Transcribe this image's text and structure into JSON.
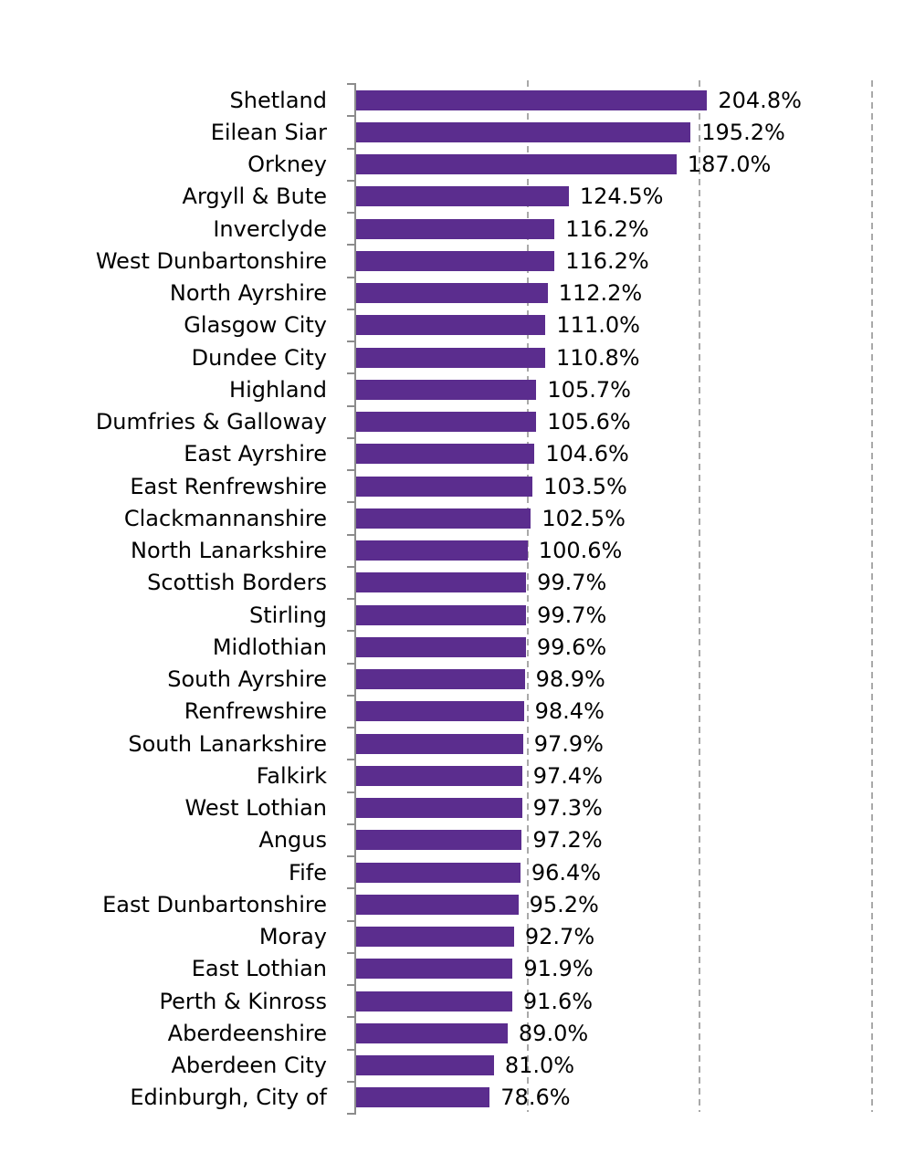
{
  "chart_data": {
    "type": "bar",
    "orientation": "horizontal",
    "title": "",
    "xlabel": "",
    "ylabel": "",
    "xlim": [
      0,
      300
    ],
    "xunit": "%",
    "gridlines_pct": [
      100,
      200,
      300
    ],
    "grid_style": "dashed-vertical",
    "legend": "none",
    "categories": [
      "Shetland",
      "Eilean Siar",
      "Orkney",
      "Argyll & Bute",
      "Inverclyde",
      "West Dunbartonshire",
      "North Ayrshire",
      "Glasgow City",
      "Dundee City",
      "Highland",
      "Dumfries & Galloway",
      "East Ayrshire",
      "East Renfrewshire",
      "Clackmannanshire",
      "North Lanarkshire",
      "Scottish Borders",
      "Stirling",
      "Midlothian",
      "South Ayrshire",
      "Renfrewshire",
      "South Lanarkshire",
      "Falkirk",
      "West Lothian",
      "Angus",
      "Fife",
      "East Dunbartonshire",
      "Moray",
      "East Lothian",
      "Perth & Kinross",
      "Aberdeenshire",
      "Aberdeen City",
      "Edinburgh, City of"
    ],
    "values": [
      204.8,
      195.2,
      187.0,
      124.5,
      116.2,
      116.2,
      112.2,
      111.0,
      110.8,
      105.7,
      105.6,
      104.6,
      103.5,
      102.5,
      100.6,
      99.7,
      99.7,
      99.6,
      98.9,
      98.4,
      97.9,
      97.4,
      97.3,
      97.2,
      96.4,
      95.2,
      92.7,
      91.9,
      91.6,
      89.0,
      81.0,
      78.6
    ],
    "value_labels": [
      "204.8%",
      "195.2%",
      "187.0%",
      "124.5%",
      "116.2%",
      "116.2%",
      "112.2%",
      "111.0%",
      "110.8%",
      "105.7%",
      "105.6%",
      "104.6%",
      "103.5%",
      "102.5%",
      "100.6%",
      "99.7%",
      "99.7%",
      "99.6%",
      "98.9%",
      "98.4%",
      "97.9%",
      "97.4%",
      "97.3%",
      "97.2%",
      "96.4%",
      "95.2%",
      "92.7%",
      "91.9%",
      "91.6%",
      "89.0%",
      "81.0%",
      "78.6%"
    ],
    "colors": {
      "bar": "#5B2D8E",
      "gridline": "#A9A9A9",
      "axis": "#8C8C8C",
      "text": "#000000",
      "background": "#FFFFFF"
    }
  }
}
